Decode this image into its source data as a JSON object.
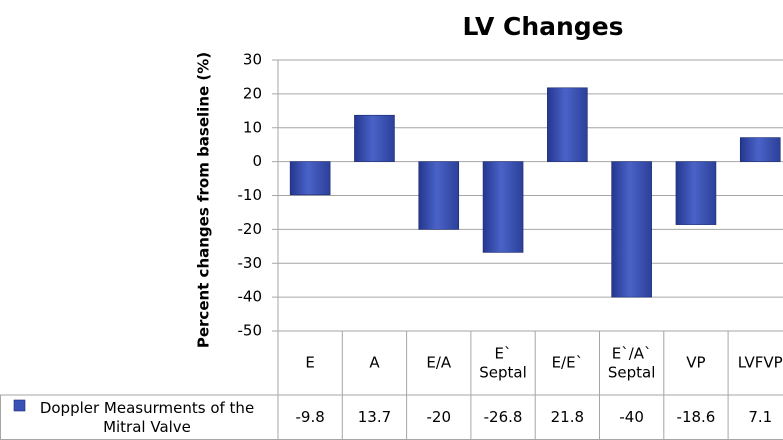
{
  "chart_data": {
    "type": "bar",
    "title": "LV Changes",
    "y_label": "Percent changes from baseline (%)",
    "categories": [
      "E",
      "A",
      "E/A",
      "E` Septal",
      "E/E`",
      "E`/A` Septal",
      "VP",
      "LVFVP"
    ],
    "series": [
      {
        "name": "Doppler Measurments of the Mitral Valve",
        "color": "#3a52b8",
        "values": [
          -9.8,
          13.7,
          -20,
          -26.8,
          21.8,
          -40,
          -18.6,
          7.1
        ]
      }
    ],
    "ylim": [
      -50,
      30
    ],
    "yticks": [
      -50,
      -40,
      -30,
      -20,
      -10,
      0,
      10,
      20,
      30
    ],
    "grid": true,
    "data_table": true
  }
}
